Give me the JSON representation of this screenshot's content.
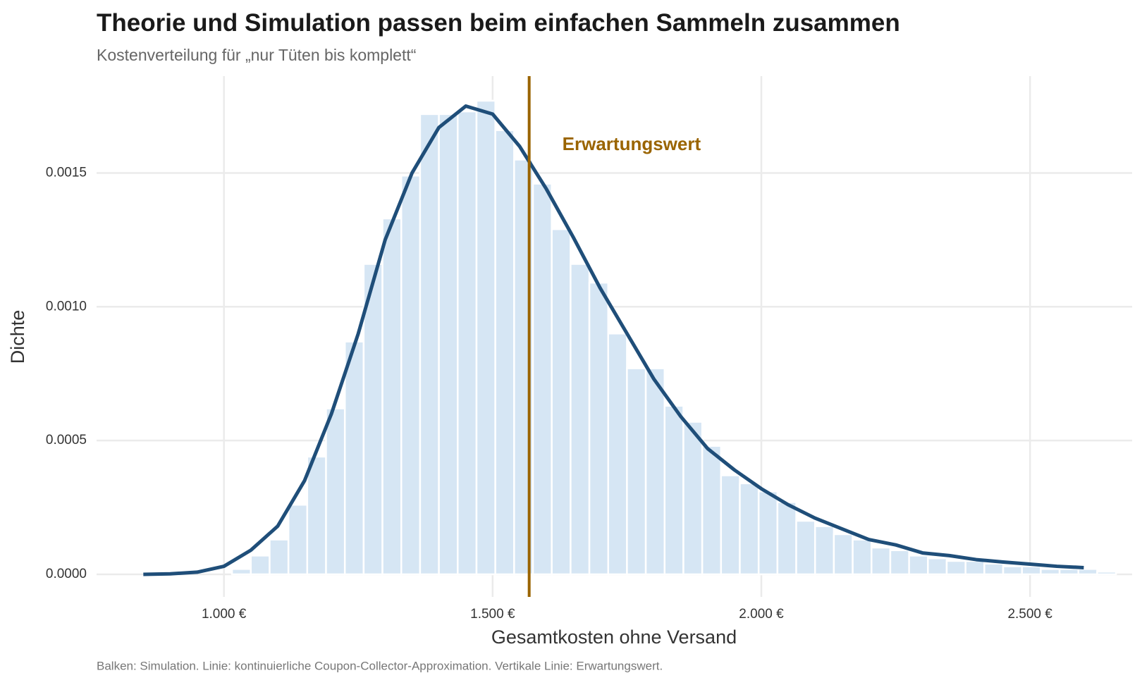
{
  "chart_data": {
    "type": "histogram",
    "title": "Theorie und Simulation passen beim einfachen Sammeln zusammen",
    "subtitle": "Kostenverteilung für „nur Tüten bis komplett“",
    "x_label": "Gesamtkosten ohne Versand",
    "y_label": "Dichte",
    "caption": "Balken: Simulation. Linie: kontinuierliche Coupon-Collector-Approximation. Vertikale Linie: Erwartungswert.",
    "bins": [
      1015,
      1050,
      1085,
      1120,
      1155,
      1190,
      1225,
      1260,
      1295,
      1330,
      1365,
      1400,
      1435,
      1470,
      1505,
      1540,
      1575,
      1610,
      1645,
      1680,
      1715,
      1750,
      1785,
      1820,
      1855,
      1890,
      1925,
      1960,
      1995,
      2030,
      2065,
      2100,
      2135,
      2170,
      2205,
      2240,
      2275,
      2310,
      2345,
      2380,
      2415,
      2450,
      2485,
      2520,
      2555,
      2590,
      2625,
      2660
    ],
    "values": [
      2e-05,
      7e-05,
      0.00013,
      0.00026,
      0.00044,
      0.00062,
      0.00087,
      0.00116,
      0.00133,
      0.00149,
      0.00172,
      0.00172,
      0.00173,
      0.00177,
      0.00166,
      0.00155,
      0.00146,
      0.00129,
      0.00116,
      0.00109,
      0.0009,
      0.00077,
      0.00077,
      0.00063,
      0.00057,
      0.00048,
      0.00037,
      0.00034,
      0.00031,
      0.00027,
      0.0002,
      0.00018,
      0.00015,
      0.00013,
      0.0001,
      9e-05,
      7e-05,
      6e-05,
      5e-05,
      5e-05,
      4e-05,
      3e-05,
      3e-05,
      2e-05,
      2e-05,
      2e-05,
      1e-05
    ],
    "color": "#d6e6f4",
    "density": {
      "x": [
        850,
        900,
        950,
        1000,
        1050,
        1100,
        1150,
        1200,
        1250,
        1300,
        1350,
        1400,
        1450,
        1500,
        1550,
        1600,
        1650,
        1700,
        1750,
        1800,
        1850,
        1900,
        1950,
        2000,
        2050,
        2100,
        2150,
        2200,
        2250,
        2300,
        2350,
        2400,
        2450,
        2500,
        2550,
        2600
      ],
      "values": [
        0,
        2e-06,
        8e-06,
        3e-05,
        9e-05,
        0.00018,
        0.00035,
        0.0006,
        0.0009,
        0.00125,
        0.0015,
        0.00167,
        0.00175,
        0.00172,
        0.0016,
        0.00144,
        0.00126,
        0.00107,
        0.0009,
        0.00073,
        0.00059,
        0.00047,
        0.00039,
        0.00032,
        0.00026,
        0.00021,
        0.00017,
        0.00013,
        0.00011,
        8e-05,
        7e-05,
        5.5e-05,
        4.6e-05,
        3.8e-05,
        3e-05,
        2.5e-05
      ],
      "color": "#1f4e79"
    },
    "reference_line": {
      "x": 1568,
      "color": "#9a6400",
      "label": "Erwartungswert"
    },
    "xlim": [
      763,
      2690
    ],
    "ylim": [
      -8.44e-05,
      0.001862
    ],
    "xticks": [
      {
        "value": 1000,
        "label": "1.000 €"
      },
      {
        "value": 1500,
        "label": "1.500 €"
      },
      {
        "value": 2000,
        "label": "2.000 €"
      },
      {
        "value": 2500,
        "label": "2.500 €"
      }
    ],
    "yticks": [
      {
        "value": 0,
        "label": "0.0000"
      },
      {
        "value": 0.0005,
        "label": "0.0005"
      },
      {
        "value": 0.001,
        "label": "0.0010"
      },
      {
        "value": 0.0015,
        "label": "0.0015"
      }
    ],
    "grid": true
  }
}
